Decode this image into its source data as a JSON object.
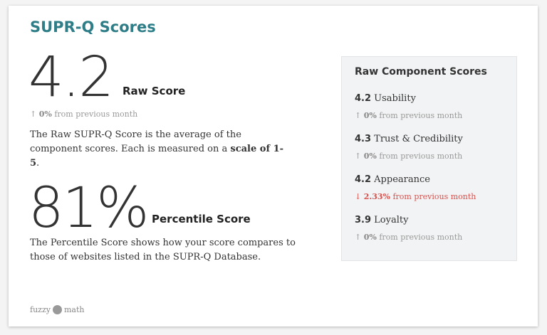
{
  "title": "SUPR-Q Scores",
  "raw": {
    "value": "4.2",
    "label": "Raw Score",
    "change": {
      "arrow": "↑",
      "value": "0%",
      "text": "from previous month"
    },
    "description": [
      "The Raw SUPR-Q Score is the average of the component scores. Each is measured on a ",
      "scale of 1-5",
      "."
    ]
  },
  "percentile": {
    "value": "81%",
    "label": "Percentile Score",
    "description": "The Percentile Score shows how your score compares to those of websites listed in the SUPR-Q Database."
  },
  "components": {
    "title": "Raw Component Scores",
    "items": [
      {
        "score": "4.2",
        "name": "Usability",
        "change": {
          "arrow": "↑",
          "value": "0%",
          "text": "from previous month"
        }
      },
      {
        "score": "4.3",
        "name": "Trust & Credibility",
        "change": {
          "arrow": "↑",
          "value": "0%",
          "text": "from previous month"
        }
      },
      {
        "score": "4.2",
        "name": "Appearance",
        "change": {
          "arrow": "↓",
          "value": "2.33%",
          "text": "from previous month"
        }
      },
      {
        "score": "3.9",
        "name": "Loyalty",
        "change": {
          "arrow": "↑",
          "value": "0%",
          "text": "from previous month"
        }
      }
    ]
  },
  "footer": {
    "logo_left": "fuzzy",
    "logo_right": "math"
  }
}
